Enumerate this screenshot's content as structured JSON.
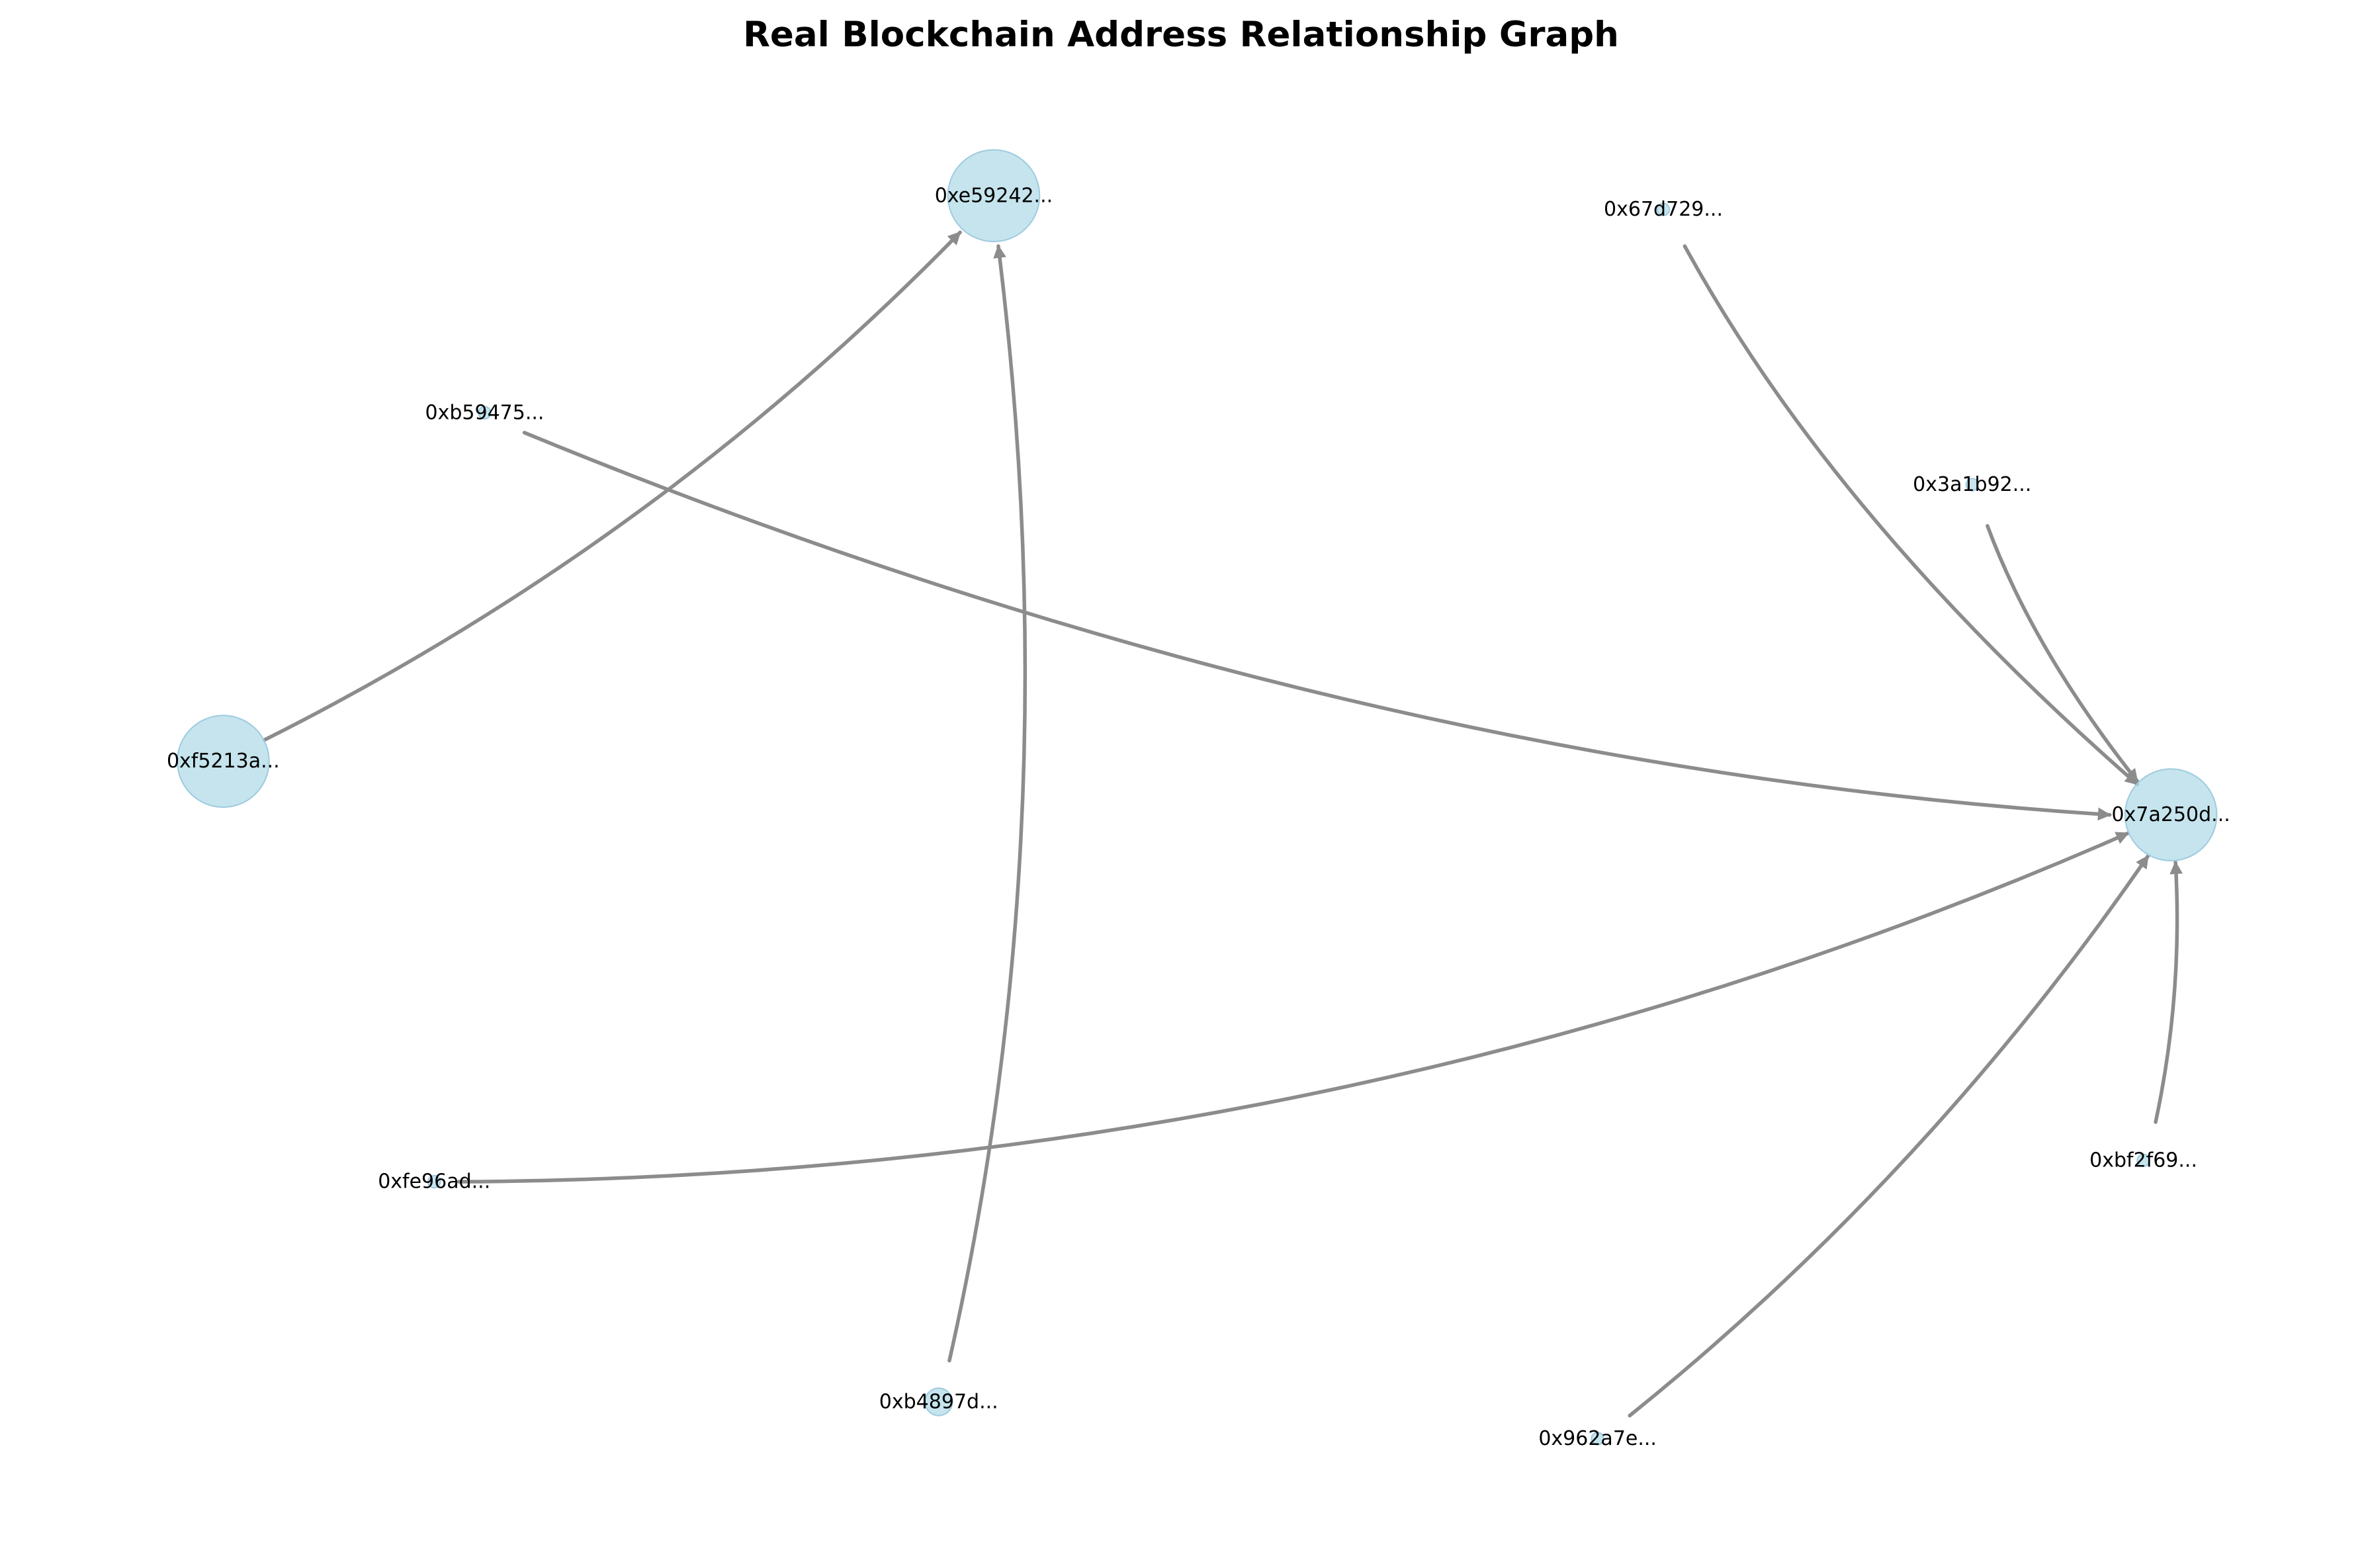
{
  "title": "Real Blockchain Address Relationship Graph",
  "colors": {
    "node_fill": "#add8e6",
    "node_stroke": "#9ecbe0",
    "edge": "#8c8c8c",
    "background": "#ffffff"
  },
  "nodes": [
    {
      "id": "e59242",
      "label": "0xe59242...",
      "size": "large"
    },
    {
      "id": "67d729",
      "label": "0x67d729...",
      "size": "tiny"
    },
    {
      "id": "b59475",
      "label": "0xb59475...",
      "size": "tiny"
    },
    {
      "id": "3a1b92",
      "label": "0x3a1b92...",
      "size": "tiny"
    },
    {
      "id": "f5213a",
      "label": "0xf5213a...",
      "size": "large"
    },
    {
      "id": "7a250d",
      "label": "0x7a250d...",
      "size": "large"
    },
    {
      "id": "fe96ad",
      "label": "0xfe96ad...",
      "size": "tiny"
    },
    {
      "id": "bf2f69",
      "label": "0xbf2f69...",
      "size": "tiny"
    },
    {
      "id": "b4897d",
      "label": "0xb4897d...",
      "size": "small"
    },
    {
      "id": "962a7e",
      "label": "0x962a7e...",
      "size": "tiny"
    }
  ],
  "edges": [
    {
      "source": "f5213a",
      "target": "e59242"
    },
    {
      "source": "b4897d",
      "target": "e59242"
    },
    {
      "source": "b59475",
      "target": "7a250d"
    },
    {
      "source": "67d729",
      "target": "7a250d"
    },
    {
      "source": "3a1b92",
      "target": "7a250d"
    },
    {
      "source": "fe96ad",
      "target": "7a250d"
    },
    {
      "source": "962a7e",
      "target": "7a250d"
    },
    {
      "source": "bf2f69",
      "target": "7a250d"
    }
  ]
}
